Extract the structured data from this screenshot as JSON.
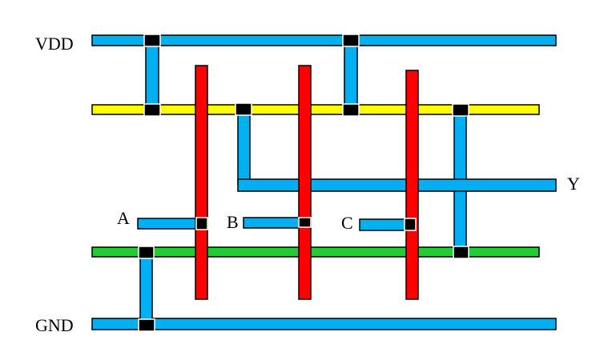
{
  "labels": {
    "vdd": "VDD",
    "gnd": "GND",
    "a": "A",
    "b": "B",
    "c": "C",
    "y": "Y"
  },
  "layers": {
    "metal_color": "#00b0f0",
    "poly_color": "#ff0000",
    "pdiff_color": "#ffff00",
    "ndiff_color": "#22cc33",
    "contact_color": "#000000"
  }
}
